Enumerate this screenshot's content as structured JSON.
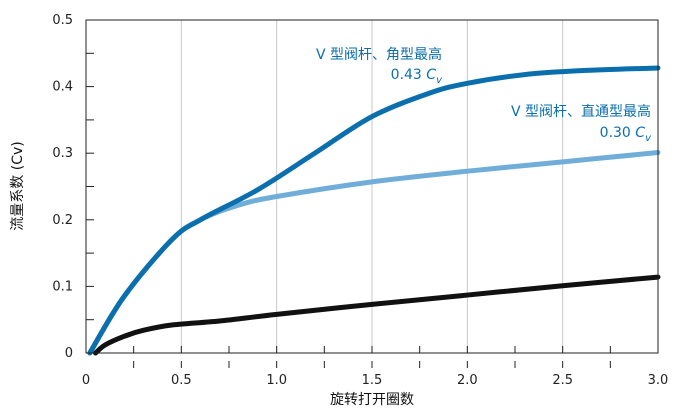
{
  "chart_data": {
    "type": "line",
    "xlabel": "旋转打开圈数",
    "ylabel": "流量系数 (Cv)",
    "xlim": [
      0,
      3.0
    ],
    "ylim": [
      0,
      0.5
    ],
    "x_ticks": [
      "0",
      "0.5",
      "1.0",
      "1.5",
      "2.0",
      "2.5",
      "3.0"
    ],
    "y_ticks": [
      "0",
      "0.1",
      "0.2",
      "0.3",
      "0.4",
      "0.5"
    ],
    "grid": "vertical",
    "series": [
      {
        "color": "#0b6fae",
        "x": [
          0.02,
          0.2,
          0.45,
          0.6,
          0.9,
          1.2,
          1.5,
          1.8,
          2.0,
          2.3,
          2.6,
          3.0
        ],
        "y": [
          0.0,
          0.085,
          0.17,
          0.2,
          0.245,
          0.3,
          0.355,
          0.39,
          0.405,
          0.418,
          0.424,
          0.428
        ]
      },
      {
        "color": "#70aed9",
        "x": [
          0.02,
          0.2,
          0.45,
          0.6,
          0.8,
          1.0,
          1.5,
          2.0,
          2.5,
          3.0
        ],
        "y": [
          0.0,
          0.085,
          0.17,
          0.2,
          0.222,
          0.235,
          0.257,
          0.273,
          0.287,
          0.301
        ]
      },
      {
        "color": "#111111",
        "x": [
          0.05,
          0.1,
          0.2,
          0.3,
          0.45,
          0.7,
          1.0,
          1.5,
          2.0,
          2.5,
          3.0
        ],
        "y": [
          0.0,
          0.012,
          0.025,
          0.034,
          0.042,
          0.048,
          0.058,
          0.073,
          0.087,
          0.101,
          0.114
        ]
      }
    ],
    "annotations": [
      {
        "line1": "V 型阀杆、角型最高",
        "value": "0.43",
        "unit": "C",
        "sub": "v",
        "color": "#0b6fae"
      },
      {
        "line1": "V 型阀杆、直通型最高",
        "value": "0.30",
        "unit": "C",
        "sub": "v",
        "color": "#0b6fae"
      }
    ]
  }
}
